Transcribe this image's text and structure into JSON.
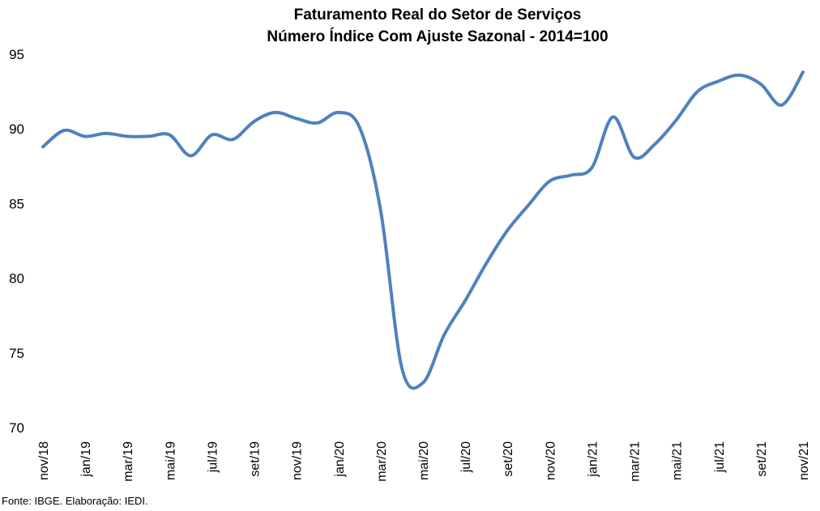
{
  "chart_data": {
    "type": "line",
    "title": "Faturamento Real do Setor de Serviços",
    "subtitle": "Número Índice Com Ajuste Sazonal - 2014=100",
    "xlabel": "",
    "ylabel": "",
    "ylim": [
      70,
      95
    ],
    "yticks": [
      70,
      75,
      80,
      85,
      90,
      95
    ],
    "grid": false,
    "legend": "none",
    "line_color": "#4F81BD",
    "x": [
      "nov/18",
      "dez/18",
      "jan/19",
      "fev/19",
      "mar/19",
      "abr/19",
      "mai/19",
      "jun/19",
      "jul/19",
      "ago/19",
      "set/19",
      "out/19",
      "nov/19",
      "dez/19",
      "jan/20",
      "fev/20",
      "mar/20",
      "abr/20",
      "mai/20",
      "jun/20",
      "jul/20",
      "ago/20",
      "set/20",
      "out/20",
      "nov/20",
      "dez/20",
      "jan/21",
      "fev/21",
      "mar/21",
      "abr/21",
      "mai/21",
      "jun/21",
      "jul/21",
      "ago/21",
      "set/21",
      "out/21",
      "nov/21"
    ],
    "xtick_labels": [
      "nov/18",
      "jan/19",
      "mar/19",
      "mai/19",
      "jul/19",
      "set/19",
      "nov/19",
      "jan/20",
      "mar/20",
      "mai/20",
      "jul/20",
      "set/20",
      "nov/20",
      "jan/21",
      "mar/21",
      "mai/21",
      "jul/21",
      "set/21",
      "nov/21"
    ],
    "series": [
      {
        "values": [
          88.8,
          89.9,
          89.5,
          89.7,
          89.5,
          89.5,
          89.6,
          88.2,
          89.6,
          89.3,
          90.5,
          91.1,
          90.7,
          90.4,
          91.1,
          90.1,
          84.5,
          74.0,
          73.0,
          76.2,
          78.5,
          81.0,
          83.2,
          84.9,
          86.5,
          86.9,
          87.4,
          90.8,
          88.1,
          89.0,
          90.6,
          92.5,
          93.2,
          93.6,
          93.0,
          91.6,
          93.8
        ]
      }
    ]
  },
  "footer": {
    "source": "Fonte: IBGE. Elaboração: IEDI."
  }
}
